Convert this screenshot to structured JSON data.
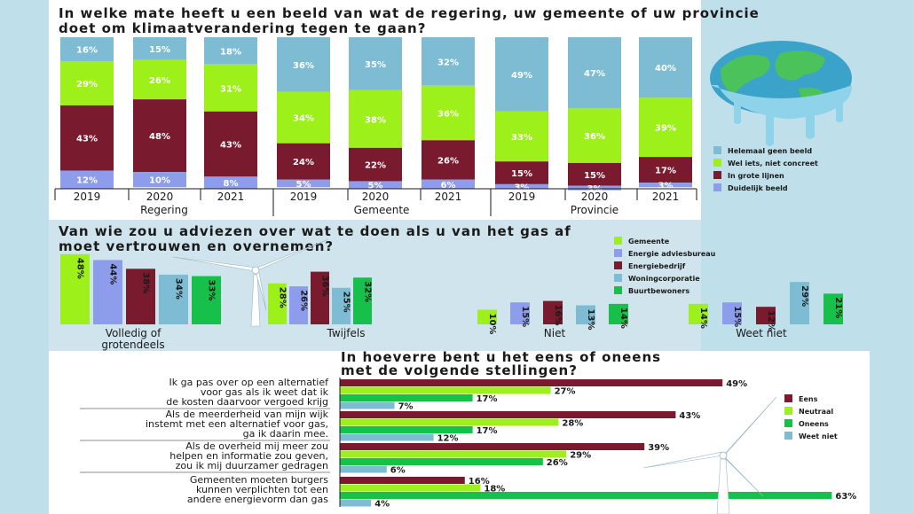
{
  "colors": {
    "teal": "#7dbcd3",
    "lime": "#9ef01a",
    "maroon": "#7a1a2e",
    "blue": "#8e9cec",
    "green": "#17c04a",
    "chart1_bg": "#ffffff",
    "chart2_bg": "#cfe4ec",
    "chart3_bg": "#ffffff"
  },
  "chart_data": [
    {
      "type": "bar",
      "stacked": true,
      "title": "In welke mate heeft u een beeld van wat de regering, uw gemeente of uw provincie doet om klimaatverandering tegen te gaan?",
      "groups": [
        "Regering",
        "Gemeente",
        "Provincie"
      ],
      "categories": [
        "2019",
        "2020",
        "2021",
        "2019",
        "2020",
        "2021",
        "2019",
        "2020",
        "2021"
      ],
      "value_labels": [
        "16%",
        "15%",
        "18%",
        "36%",
        "35%",
        "32%",
        "49%",
        "47%",
        "40%",
        "29%",
        "26%",
        "31%",
        "34%",
        "38%",
        "36%",
        "33%",
        "36%",
        "39%",
        "43%",
        "48%",
        "43%",
        "24%",
        "22%",
        "26%",
        "15%",
        "15%",
        "17%",
        "12%",
        "10%",
        "8%",
        "5%",
        "5%",
        "6%",
        "3%",
        "3%",
        "3%"
      ],
      "series": [
        {
          "name": "Helemaal geen beeld",
          "color": "teal",
          "values": [
            16,
            15,
            18,
            36,
            35,
            32,
            49,
            47,
            40
          ]
        },
        {
          "name": "Wel iets, niet concreet",
          "color": "lime",
          "values": [
            29,
            26,
            31,
            34,
            38,
            36,
            33,
            36,
            39
          ]
        },
        {
          "name": "In grote lijnen",
          "color": "maroon",
          "values": [
            43,
            48,
            43,
            24,
            22,
            26,
            15,
            15,
            17
          ]
        },
        {
          "name": "Duidelijk beeld",
          "color": "blue",
          "values": [
            12,
            10,
            8,
            5,
            5,
            6,
            3,
            3,
            3
          ]
        }
      ],
      "legend": "right"
    },
    {
      "type": "bar",
      "title": "Van wie zou u adviezen over wat te doen als u van het gas af moet vertrouwen en overnemen?",
      "categories": [
        "Volledig of grotendeels",
        "Twijfels",
        "Niet",
        "Weet niet"
      ],
      "value_labels": [
        "48%",
        "44%",
        "38%",
        "34%",
        "33%",
        "28%",
        "26%",
        "36%",
        "25%",
        "32%",
        "10%",
        "15%",
        "16%",
        "13%",
        "14%",
        "14%",
        "15%",
        "12%",
        "29%",
        "21%"
      ],
      "series": [
        {
          "name": "Gemeente",
          "color": "lime",
          "values": [
            48,
            28,
            10,
            14
          ]
        },
        {
          "name": "Energie adviesbureau",
          "color": "blue",
          "values": [
            44,
            26,
            15,
            15
          ]
        },
        {
          "name": "Energiebedrijf",
          "color": "maroon",
          "values": [
            38,
            36,
            16,
            12
          ]
        },
        {
          "name": "Woningcorporatie",
          "color": "teal",
          "values": [
            34,
            25,
            13,
            29
          ]
        },
        {
          "name": "Buurtbewoners",
          "color": "green",
          "values": [
            33,
            32,
            14,
            21
          ]
        }
      ],
      "legend": "top-right"
    },
    {
      "type": "bar",
      "orientation": "horizontal",
      "title": "In hoeverre bent u het eens of oneens met de volgende stellingen?",
      "categories": [
        [
          "Ik ga pas over op een alternatief",
          "voor gas als ik weet dat ik",
          "de kosten daarvoor vergoed krijg"
        ],
        [
          "Als de meerderheid van mijn wijk",
          "instemt met een alternatief voor gas,",
          "ga ik daarin mee."
        ],
        [
          "Als de overheid mij meer zou",
          "helpen en informatie zou geven,",
          "zou ik mij duurzamer gedragen"
        ],
        [
          "Gemeenten moeten burgers",
          "kunnen verplichten tot een",
          "andere energievorm dan gas"
        ]
      ],
      "value_labels": [
        "49%",
        "27%",
        "17%",
        "7%",
        "43%",
        "28%",
        "17%",
        "12%",
        "39%",
        "29%",
        "26%",
        "6%",
        "16%",
        "18%",
        "63%",
        "4%"
      ],
      "series": [
        {
          "name": "Eens",
          "color": "maroon",
          "values": [
            49,
            43,
            39,
            16
          ]
        },
        {
          "name": "Neutraal",
          "color": "lime",
          "values": [
            27,
            28,
            29,
            18
          ]
        },
        {
          "name": "Oneens",
          "color": "green",
          "values": [
            17,
            17,
            26,
            63
          ]
        },
        {
          "name": "Weet niet",
          "color": "teal",
          "values": [
            7,
            12,
            6,
            4
          ]
        }
      ],
      "legend": "right"
    }
  ]
}
